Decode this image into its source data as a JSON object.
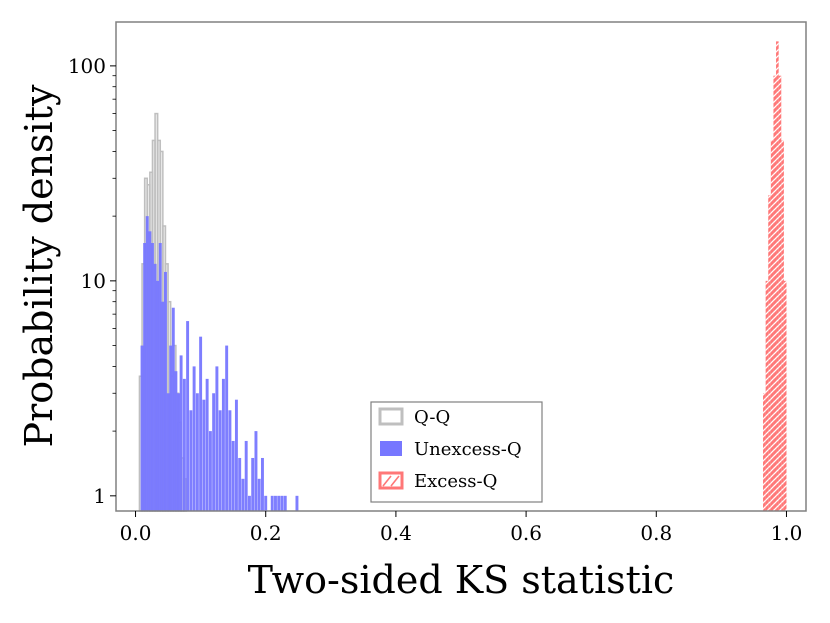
{
  "chart_data": {
    "type": "histogram",
    "title": "",
    "xlabel": "Two-sided KS statistic",
    "ylabel": "Probability density",
    "xlim": [
      -0.03,
      1.03
    ],
    "ylim": [
      0.85,
      160
    ],
    "yscale": "log",
    "x_ticks": [
      0.0,
      0.2,
      0.4,
      0.6,
      0.8,
      1.0
    ],
    "x_tick_labels": [
      "0.0",
      "0.2",
      "0.4",
      "0.6",
      "0.8",
      "1.0"
    ],
    "y_ticks": [
      1,
      10,
      100
    ],
    "y_tick_labels": [
      "1",
      "10",
      "100"
    ],
    "legend_position": "lower-center",
    "series": [
      {
        "name": "Q-Q",
        "style": "step-outline",
        "color": "#bfbfbf",
        "bin_width": 0.004,
        "bins": [
          {
            "x": 0.008,
            "y": 3.6
          },
          {
            "x": 0.012,
            "y": 12
          },
          {
            "x": 0.016,
            "y": 30
          },
          {
            "x": 0.02,
            "y": 28
          },
          {
            "x": 0.024,
            "y": 32
          },
          {
            "x": 0.028,
            "y": 45
          },
          {
            "x": 0.032,
            "y": 60
          },
          {
            "x": 0.036,
            "y": 45
          },
          {
            "x": 0.04,
            "y": 40
          },
          {
            "x": 0.044,
            "y": 18
          },
          {
            "x": 0.048,
            "y": 12
          },
          {
            "x": 0.052,
            "y": 8
          },
          {
            "x": 0.056,
            "y": 3.6
          },
          {
            "x": 0.06,
            "y": 5
          },
          {
            "x": 0.064,
            "y": 3
          },
          {
            "x": 0.068,
            "y": 2.2
          },
          {
            "x": 0.072,
            "y": 1.5
          },
          {
            "x": 0.076,
            "y": 1.2
          }
        ]
      },
      {
        "name": "Unexcess-Q",
        "style": "filled",
        "color": "#7777ff",
        "bin_width": 0.0045,
        "bins": [
          {
            "x": 0.01,
            "y": 5
          },
          {
            "x": 0.014,
            "y": 15
          },
          {
            "x": 0.018,
            "y": 20
          },
          {
            "x": 0.022,
            "y": 17
          },
          {
            "x": 0.026,
            "y": 15
          },
          {
            "x": 0.03,
            "y": 12
          },
          {
            "x": 0.034,
            "y": 10
          },
          {
            "x": 0.038,
            "y": 15
          },
          {
            "x": 0.042,
            "y": 8
          },
          {
            "x": 0.046,
            "y": 11
          },
          {
            "x": 0.05,
            "y": 3
          },
          {
            "x": 0.054,
            "y": 5
          },
          {
            "x": 0.058,
            "y": 7.5
          },
          {
            "x": 0.062,
            "y": 3.8
          },
          {
            "x": 0.066,
            "y": 3
          },
          {
            "x": 0.07,
            "y": 4.5
          },
          {
            "x": 0.075,
            "y": 3.5
          },
          {
            "x": 0.08,
            "y": 6.5
          },
          {
            "x": 0.085,
            "y": 2.5
          },
          {
            "x": 0.09,
            "y": 4
          },
          {
            "x": 0.095,
            "y": 3
          },
          {
            "x": 0.1,
            "y": 5.5
          },
          {
            "x": 0.105,
            "y": 2.8
          },
          {
            "x": 0.11,
            "y": 3.5
          },
          {
            "x": 0.115,
            "y": 2
          },
          {
            "x": 0.12,
            "y": 3
          },
          {
            "x": 0.125,
            "y": 4
          },
          {
            "x": 0.13,
            "y": 2.5
          },
          {
            "x": 0.135,
            "y": 3.5
          },
          {
            "x": 0.14,
            "y": 5
          },
          {
            "x": 0.145,
            "y": 2.5
          },
          {
            "x": 0.15,
            "y": 1.8
          },
          {
            "x": 0.155,
            "y": 2.8
          },
          {
            "x": 0.16,
            "y": 1.5
          },
          {
            "x": 0.165,
            "y": 1.2
          },
          {
            "x": 0.17,
            "y": 1.8
          },
          {
            "x": 0.175,
            "y": 1
          },
          {
            "x": 0.18,
            "y": 1.5
          },
          {
            "x": 0.185,
            "y": 2
          },
          {
            "x": 0.19,
            "y": 1.2
          },
          {
            "x": 0.195,
            "y": 1.5
          },
          {
            "x": 0.2,
            "y": 1
          },
          {
            "x": 0.21,
            "y": 1
          },
          {
            "x": 0.215,
            "y": 1
          },
          {
            "x": 0.22,
            "y": 1
          },
          {
            "x": 0.225,
            "y": 1
          },
          {
            "x": 0.23,
            "y": 1
          },
          {
            "x": 0.248,
            "y": 1
          }
        ]
      },
      {
        "name": "Excess-Q",
        "style": "hatched",
        "color": "#ff7777",
        "bin_width": 0.004,
        "bins": [
          {
            "x": 0.966,
            "y": 3
          },
          {
            "x": 0.97,
            "y": 10
          },
          {
            "x": 0.974,
            "y": 25
          },
          {
            "x": 0.978,
            "y": 45
          },
          {
            "x": 0.982,
            "y": 90
          },
          {
            "x": 0.986,
            "y": 130
          },
          {
            "x": 0.99,
            "y": 90
          },
          {
            "x": 0.994,
            "y": 45
          },
          {
            "x": 0.998,
            "y": 10
          }
        ]
      }
    ]
  }
}
